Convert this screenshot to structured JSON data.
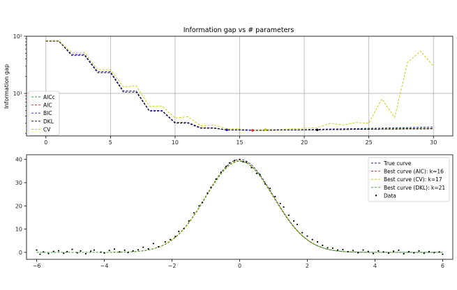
{
  "chart_data": [
    {
      "type": "line",
      "title": "Information gap vs # parameters",
      "xlabel": "",
      "ylabel": "Information gap",
      "yscale": "log",
      "xlim": [
        -1.5,
        31.5
      ],
      "ylim": [
        1.8,
        100
      ],
      "xticks": [
        0,
        5,
        10,
        15,
        20,
        25,
        30
      ],
      "yticks": [
        {
          "value": 10,
          "label": "10¹"
        },
        {
          "value": 100,
          "label": "10²"
        }
      ],
      "grid": true,
      "legend": "bottom-left",
      "x": [
        0,
        1,
        2,
        3,
        4,
        5,
        6,
        7,
        8,
        9,
        10,
        11,
        12,
        13,
        14,
        15,
        16,
        17,
        18,
        19,
        20,
        21,
        22,
        23,
        24,
        25,
        26,
        27,
        28,
        29,
        30
      ],
      "series": [
        {
          "name": "AICc",
          "color": "#2ca02c",
          "style": "dashed",
          "values": [
            82,
            82,
            48,
            48,
            24,
            24,
            11,
            11,
            5.0,
            5.0,
            3.1,
            3.1,
            2.5,
            2.5,
            2.3,
            2.3,
            2.25,
            2.25,
            2.3,
            2.3,
            2.3,
            2.3,
            2.35,
            2.35,
            2.4,
            2.4,
            2.45,
            2.45,
            2.45,
            2.45,
            2.45
          ]
        },
        {
          "name": "AIC",
          "color": "#d62728",
          "style": "dashed",
          "values": [
            82,
            82,
            48,
            48,
            24,
            24,
            11,
            11,
            5.0,
            5.0,
            3.1,
            3.1,
            2.5,
            2.5,
            2.3,
            2.3,
            2.25,
            2.25,
            2.28,
            2.28,
            2.3,
            2.3,
            2.32,
            2.32,
            2.35,
            2.35,
            2.37,
            2.37,
            2.38,
            2.38,
            2.4
          ]
        },
        {
          "name": "BIC",
          "color": "#1f1fbf",
          "style": "dashed",
          "values": [
            82,
            82,
            48,
            48,
            24,
            24,
            11,
            11,
            5.0,
            5.0,
            3.1,
            3.1,
            2.5,
            2.5,
            2.3,
            2.3,
            2.28,
            2.28,
            2.3,
            2.3,
            2.32,
            2.35,
            2.38,
            2.4,
            2.42,
            2.45,
            2.47,
            2.5,
            2.52,
            2.55,
            2.58
          ]
        },
        {
          "name": "DKL",
          "color": "#000000",
          "style": "dashed",
          "values": [
            82,
            82,
            46,
            46,
            23,
            23,
            10.5,
            10.5,
            4.9,
            4.9,
            3.0,
            3.0,
            2.45,
            2.45,
            2.28,
            2.28,
            2.25,
            2.25,
            2.28,
            2.28,
            2.3,
            2.3,
            2.32,
            2.32,
            2.35,
            2.35,
            2.37,
            2.37,
            2.4,
            2.4,
            2.42
          ]
        },
        {
          "name": "CV",
          "color": "#c8c800",
          "style": "dashed",
          "values": [
            84,
            84,
            52,
            52,
            26,
            26,
            13,
            13.5,
            6.0,
            6.0,
            3.7,
            3.9,
            2.7,
            2.8,
            2.4,
            2.4,
            2.3,
            2.32,
            2.35,
            2.4,
            2.45,
            2.5,
            3.0,
            2.8,
            3.1,
            3.0,
            8.0,
            3.8,
            35,
            55,
            30
          ]
        }
      ],
      "markers": [
        {
          "series": "AIC",
          "x": 16,
          "y": 2.25,
          "color": "#d62728"
        },
        {
          "series": "CV",
          "x": 17,
          "y": 2.32,
          "color": "#c8c800"
        },
        {
          "series": "DKL",
          "x": 21,
          "y": 2.3,
          "color": "#000000"
        },
        {
          "series": "BIC",
          "x": 14,
          "y": 2.3,
          "color": "#1f1fbf"
        }
      ]
    },
    {
      "type": "line",
      "title": "",
      "xlabel": "",
      "ylabel": "",
      "xlim": [
        -6.3,
        6.3
      ],
      "ylim": [
        -3,
        42
      ],
      "xticks": [
        -6,
        -4,
        -2,
        0,
        2,
        4,
        6
      ],
      "yticks": [
        0,
        10,
        20,
        30,
        40
      ],
      "grid": false,
      "legend": "top-right",
      "curve_model": {
        "amplitude": 40,
        "center": 0,
        "sigma": 1.0
      },
      "series": [
        {
          "name": "True curve",
          "color": "#1f1f8f",
          "style": "dashed",
          "amplitude": 40,
          "sigma": 1.0
        },
        {
          "name": "Best curve (AIC): k=16",
          "color": "#d62728",
          "style": "dashed",
          "amplitude": 39.3,
          "sigma": 1.0
        },
        {
          "name": "Best curve (CV): k=17",
          "color": "#c8c800",
          "style": "dashed",
          "amplitude": 39.5,
          "sigma": 1.01
        },
        {
          "name": "Best curve (DKL): k=21",
          "color": "#2ca02c",
          "style": "dashed",
          "amplitude": 39.2,
          "sigma": 1.0
        }
      ],
      "data_series": {
        "name": "Data",
        "color": "#000000",
        "points": [
          [
            -6.0,
            1.0
          ],
          [
            -5.9,
            -0.8
          ],
          [
            -5.8,
            0.2
          ],
          [
            -5.65,
            -0.5
          ],
          [
            -5.5,
            0.4
          ],
          [
            -5.35,
            0.7
          ],
          [
            -5.2,
            -0.4
          ],
          [
            -5.1,
            0.3
          ],
          [
            -4.95,
            1.3
          ],
          [
            -4.8,
            -0.2
          ],
          [
            -4.7,
            0.6
          ],
          [
            -4.55,
            -0.6
          ],
          [
            -4.4,
            0.5
          ],
          [
            -4.3,
            1.0
          ],
          [
            -4.1,
            0.1
          ],
          [
            -4.0,
            -0.3
          ],
          [
            -3.85,
            0.8
          ],
          [
            -3.7,
            1.4
          ],
          [
            -3.55,
            0.2
          ],
          [
            -3.4,
            0.9
          ],
          [
            -3.3,
            -0.1
          ],
          [
            -3.15,
            0.6
          ],
          [
            -3.0,
            1.1
          ],
          [
            -2.85,
            2.2
          ],
          [
            -2.7,
            1.5
          ],
          [
            -2.55,
            3.8
          ],
          [
            -2.4,
            2.4
          ],
          [
            -2.2,
            4.5
          ],
          [
            -2.05,
            5.5
          ],
          [
            -1.9,
            6.8
          ],
          [
            -1.8,
            9.0
          ],
          [
            -1.65,
            10.2
          ],
          [
            -1.5,
            13.5
          ],
          [
            -1.35,
            17.0
          ],
          [
            -1.2,
            20.0
          ],
          [
            -1.1,
            21.5
          ],
          [
            -0.95,
            25.5
          ],
          [
            -0.85,
            28.0
          ],
          [
            -0.7,
            31.5
          ],
          [
            -0.55,
            34.5
          ],
          [
            -0.4,
            37.0
          ],
          [
            -0.3,
            38.5
          ],
          [
            -0.15,
            39.5
          ],
          [
            0.0,
            40.0
          ],
          [
            0.1,
            39.0
          ],
          [
            0.2,
            38.8
          ],
          [
            0.35,
            36.5
          ],
          [
            0.5,
            34.0
          ],
          [
            0.6,
            33.5
          ],
          [
            0.75,
            29.5
          ],
          [
            0.9,
            27.5
          ],
          [
            1.05,
            24.0
          ],
          [
            1.2,
            21.0
          ],
          [
            1.3,
            19.5
          ],
          [
            1.45,
            16.0
          ],
          [
            1.6,
            13.5
          ],
          [
            1.7,
            12.0
          ],
          [
            1.85,
            8.5
          ],
          [
            2.0,
            7.0
          ],
          [
            2.15,
            5.5
          ],
          [
            2.3,
            4.5
          ],
          [
            2.45,
            3.0
          ],
          [
            2.6,
            2.0
          ],
          [
            2.75,
            1.8
          ],
          [
            2.9,
            1.0
          ],
          [
            3.05,
            1.2
          ],
          [
            3.2,
            0.3
          ],
          [
            3.35,
            0.8
          ],
          [
            3.5,
            -0.2
          ],
          [
            3.65,
            1.0
          ],
          [
            3.8,
            0.4
          ],
          [
            3.95,
            -0.5
          ],
          [
            4.1,
            0.6
          ],
          [
            4.25,
            0.2
          ],
          [
            4.4,
            -0.3
          ],
          [
            4.55,
            0.5
          ],
          [
            4.7,
            0.9
          ],
          [
            4.85,
            -0.6
          ],
          [
            5.0,
            0.3
          ],
          [
            5.15,
            -0.2
          ],
          [
            5.3,
            0.6
          ],
          [
            5.45,
            -0.4
          ],
          [
            5.6,
            0.3
          ],
          [
            5.75,
            -0.1
          ],
          [
            5.9,
            0.2
          ],
          [
            6.0,
            -0.8
          ]
        ]
      }
    }
  ]
}
